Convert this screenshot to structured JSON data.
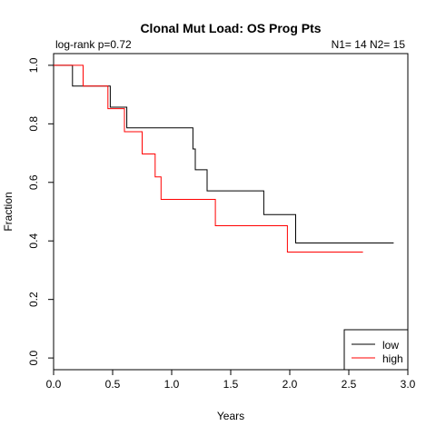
{
  "chart_data": {
    "type": "line",
    "title": "Clonal Mut Load: OS Prog Pts",
    "xlabel": "Years",
    "ylabel": "Fraction",
    "xlim": [
      0,
      3.0
    ],
    "ylim": [
      -0.04,
      1.04
    ],
    "x_ticks": [
      0,
      0.5,
      1.0,
      1.5,
      2.0,
      2.5,
      3.0
    ],
    "x_tick_labels": [
      "0.0",
      "0.5",
      "1.0",
      "1.5",
      "2.0",
      "2.5",
      "3.0"
    ],
    "y_ticks": [
      0,
      0.2,
      0.4,
      0.6,
      0.8,
      1.0
    ],
    "y_tick_labels": [
      "0.0",
      "0.2",
      "0.4",
      "0.6",
      "0.8",
      "1.0"
    ],
    "annotation_left": "log-rank p=0.72",
    "annotation_right": "N1= 14 N2= 15",
    "legend_position": "bottom-right",
    "grid": false,
    "series": [
      {
        "name": "low",
        "color": "#000000",
        "steps": [
          [
            0,
            1.0
          ],
          [
            0.16,
            0.929
          ],
          [
            0.48,
            0.857
          ],
          [
            0.62,
            0.786
          ],
          [
            1.18,
            0.714
          ],
          [
            1.2,
            0.643
          ],
          [
            1.3,
            0.571
          ],
          [
            1.78,
            0.49
          ],
          [
            2.05,
            0.393
          ],
          [
            2.88,
            0.393
          ]
        ]
      },
      {
        "name": "high",
        "color": "#ff0000",
        "steps": [
          [
            0,
            1.0
          ],
          [
            0.25,
            0.929
          ],
          [
            0.46,
            0.852
          ],
          [
            0.6,
            0.773
          ],
          [
            0.75,
            0.697
          ],
          [
            0.86,
            0.619
          ],
          [
            0.91,
            0.542
          ],
          [
            1.37,
            0.452
          ],
          [
            1.98,
            0.362
          ],
          [
            2.62,
            0.362
          ]
        ]
      }
    ]
  }
}
